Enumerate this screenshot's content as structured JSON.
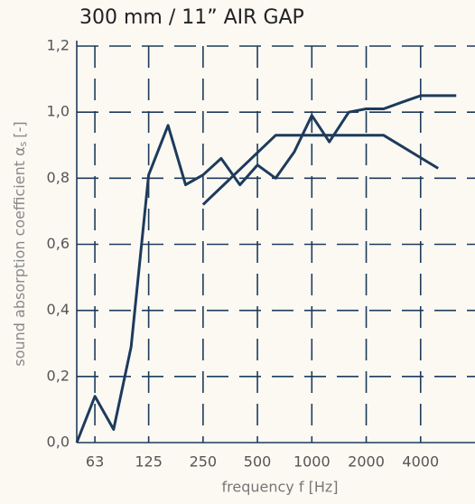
{
  "chart_data": {
    "type": "line",
    "title": "300 mm / 11” AIR GAP",
    "x_label": "frequency f [Hz]",
    "y_label": "sound absorption coefficient α",
    "y_label_sub": "s",
    "y_label_end": "[-]",
    "xscale": "log",
    "grid": true,
    "xlim": [
      50,
      8000
    ],
    "ylim": [
      0,
      1.2
    ],
    "xticks": [
      63,
      125,
      250,
      500,
      1000,
      2000,
      4000
    ],
    "yticks": [
      {
        "value": 0,
        "label": "0,0"
      },
      {
        "value": 0.2,
        "label": "0,2"
      },
      {
        "value": 0.4,
        "label": "0,4"
      },
      {
        "value": 0.6,
        "label": "0,6"
      },
      {
        "value": 0.8,
        "label": "0,8"
      },
      {
        "value": 1.0,
        "label": "1,0"
      },
      {
        "value": 1.2,
        "label": "1,2"
      }
    ],
    "series": [
      {
        "color": "#1d3b5c",
        "x": [
          50,
          63,
          80,
          100,
          125,
          160,
          200,
          250,
          315,
          400,
          500,
          630,
          800,
          1000,
          1250,
          1600,
          2000,
          2500,
          3150,
          4000,
          5000,
          6300
        ],
        "values": [
          0.0,
          0.14,
          0.04,
          0.29,
          0.81,
          0.96,
          0.78,
          0.81,
          0.86,
          0.78,
          0.84,
          0.8,
          0.88,
          0.99,
          0.91,
          1.0,
          1.01,
          1.01,
          1.03,
          1.05,
          1.05,
          1.05
        ]
      },
      {
        "color": "#1d3b5c",
        "x": [
          250,
          630,
          1250,
          2500,
          5000
        ],
        "values": [
          0.72,
          0.93,
          0.93,
          0.93,
          0.83
        ]
      }
    ]
  }
}
